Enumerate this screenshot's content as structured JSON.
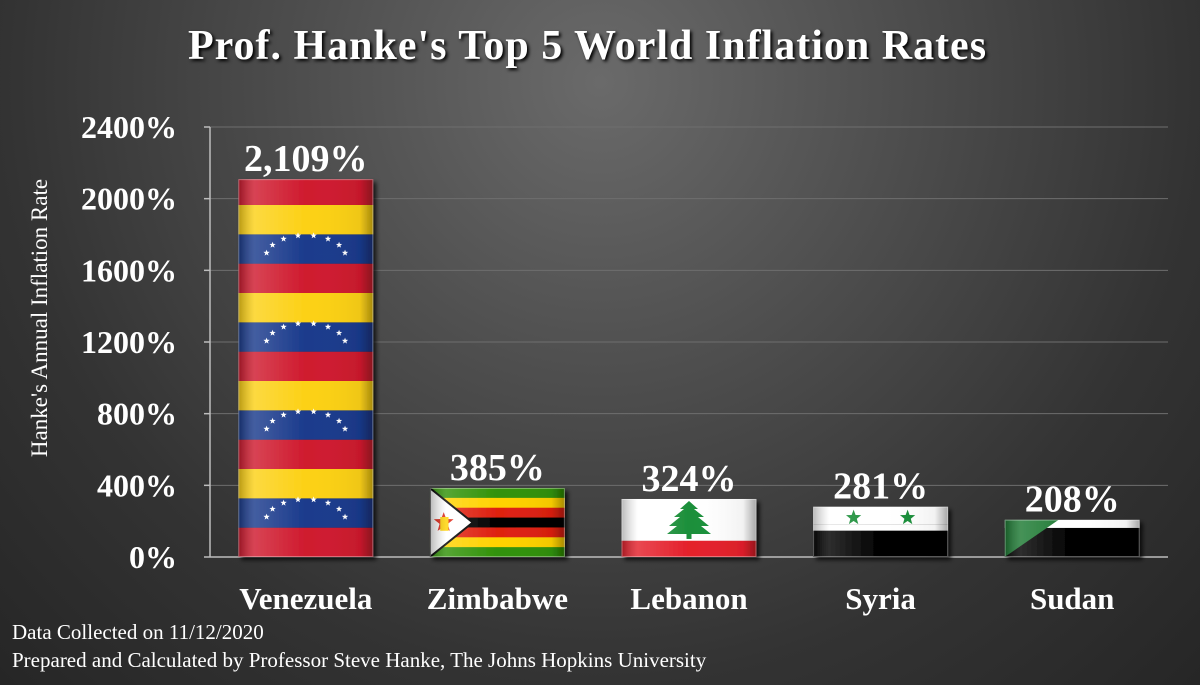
{
  "chart_data": {
    "type": "bar",
    "title": "Prof. Hanke's Top 5 World Inflation Rates",
    "xlabel": "",
    "ylabel": "Hanke's Annual Inflation Rate",
    "categories": [
      "Venezuela",
      "Zimbabwe",
      "Lebanon",
      "Syria",
      "Sudan"
    ],
    "values": [
      2109,
      385,
      324,
      281,
      208
    ],
    "data_labels": [
      "2,109%",
      "385%",
      "324%",
      "281%",
      "208%"
    ],
    "bar_fills": [
      "venezuela-flag",
      "zimbabwe-flag",
      "lebanon-flag",
      "syria-flag",
      "sudan-flag"
    ],
    "ylim": [
      0,
      2400
    ],
    "y_ticks": [
      0,
      400,
      800,
      1200,
      1600,
      2000,
      2400
    ],
    "y_tick_labels": [
      "0%",
      "400%",
      "800%",
      "1200%",
      "1600%",
      "2000%",
      "2400%"
    ],
    "grid": true,
    "legend": "none"
  },
  "footer": {
    "line1": "Data Collected on 11/12/2020",
    "line2": "Prepared and Calculated by Professor Steve Hanke, The Johns Hopkins University"
  },
  "colors": {
    "background": "#4a4a4a",
    "text": "#ffffff",
    "gridline": "#6e6e6e",
    "venezuela_yellow": "#FCD116",
    "venezuela_blue": "#1A3A8C",
    "venezuela_red": "#CF1A2E",
    "zimbabwe_green": "#319208",
    "zimbabwe_yellow": "#FFD200",
    "zimbabwe_red": "#DE2010",
    "lebanon_red": "#E4202B",
    "syria_green": "#1C8F3A",
    "sudan_green": "#1D7A33"
  }
}
